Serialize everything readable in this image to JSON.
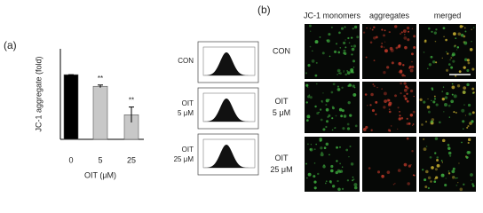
{
  "chart_data": {
    "type": "bar",
    "categories": [
      "0",
      "5",
      "25"
    ],
    "values": [
      1.0,
      0.82,
      0.38
    ],
    "errors": [
      0.0,
      0.02,
      0.12
    ],
    "colors": [
      "#000000",
      "#c8c8c8",
      "#c8c8c8"
    ],
    "significance": [
      null,
      "**",
      "**"
    ],
    "ylim": [
      0,
      1.4
    ],
    "x_label": "OIT (μM)",
    "y_label": "JC-1 aggregate (fold)"
  },
  "panel_labels": [
    "(a)",
    "(b)"
  ],
  "histograms": {
    "labels": [
      [
        "CON"
      ],
      [
        "OIT",
        "5 μM"
      ],
      [
        "OIT",
        "25 μM"
      ]
    ]
  },
  "micrographs": {
    "columns": [
      "JC-1 monomers",
      "aggregates",
      "merged"
    ],
    "rows": [
      [
        "CON"
      ],
      [
        "OIT",
        "5 μM"
      ],
      [
        "OIT",
        "25 μM"
      ]
    ]
  }
}
